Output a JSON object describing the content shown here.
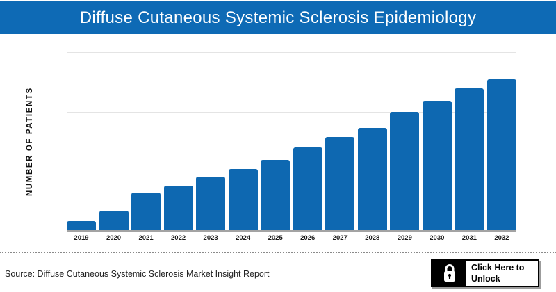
{
  "header": {
    "title": "Diffuse Cutaneous Systemic Sclerosis Epidemiology",
    "bg_color": "#0e6ab5"
  },
  "chart": {
    "y_axis_label": "NUMBER OF PATIENTS"
  },
  "chart_data": {
    "type": "bar",
    "title": "Diffuse Cutaneous Systemic Sclerosis Epidemiology",
    "categories": [
      "2019",
      "2020",
      "2021",
      "2022",
      "2023",
      "2024",
      "2025",
      "2026",
      "2027",
      "2028",
      "2029",
      "2030",
      "2031",
      "2032"
    ],
    "values": [
      5,
      11,
      21,
      25,
      30,
      34,
      39,
      46,
      52,
      57,
      66,
      72,
      79,
      84
    ],
    "xlabel": "",
    "ylabel": "NUMBER OF PATIENTS",
    "ylim": [
      0,
      100
    ],
    "y_tick_labels": "none (axis unlabeled, values are relative units estimated from gridlines)",
    "gridlines": "horizontal",
    "legend": "none",
    "bar_color": "#0e68b1"
  },
  "footer": {
    "source_label": "Source: Diffuse Cutaneous Systemic Sclerosis Market Insight Report",
    "unlock_button": {
      "line1": "Click Here to",
      "line2": "Unlock",
      "icon": "lock-icon"
    }
  }
}
